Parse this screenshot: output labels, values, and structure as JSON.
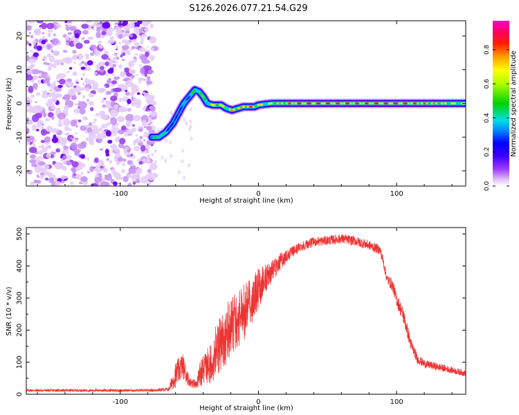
{
  "title": "S126.2026.077.21.54.G29",
  "chart_data": [
    {
      "type": "heatmap",
      "xlabel": "Height of straight line (km)",
      "ylabel": "Frequency (Hz)",
      "xlim": [
        -168,
        150
      ],
      "ylim": [
        -24.5,
        24.5
      ],
      "xticks": [
        -100,
        0,
        100
      ],
      "yticks": [
        -20,
        -10,
        0,
        10,
        20
      ],
      "noise_region_x": [
        -168,
        -77
      ],
      "colorbar": {
        "label": "Normalized spectral amplitude",
        "range": [
          0,
          0.97
        ],
        "ticks": [
          0.0,
          0.2,
          0.4,
          0.6,
          0.8
        ],
        "colormap": [
          "#ffffff",
          "#e8c8f8",
          "#b060f0",
          "#6600ff",
          "#0000ff",
          "#00a0ff",
          "#00e0e0",
          "#00d000",
          "#c0ff00",
          "#ffff00",
          "#ffa000",
          "#ff3000",
          "#ff0060",
          "#ff00c0"
        ]
      },
      "ridge": {
        "x": [
          -77,
          -72,
          -67,
          -62,
          -58,
          -54,
          -50,
          -46,
          -43,
          -40,
          -37,
          -33,
          -30,
          -27,
          -23,
          -19,
          -15,
          -11,
          -7,
          -3,
          0,
          5,
          10,
          20,
          40,
          60,
          80,
          100,
          120,
          150
        ],
        "freq": [
          -10,
          -10,
          -8.5,
          -6,
          -3,
          0,
          2,
          4,
          3.5,
          2,
          0,
          -0.5,
          -0.5,
          -0.5,
          -1.5,
          -2,
          -1.5,
          -1,
          -1,
          -1,
          -0.5,
          -0.2,
          0,
          0,
          0,
          0,
          0,
          0,
          0,
          0
        ],
        "amplitude": [
          0.35,
          0.6,
          0.4,
          0.3,
          0.3,
          0.35,
          0.45,
          0.5,
          0.6,
          0.5,
          0.55,
          0.6,
          0.75,
          0.65,
          0.6,
          0.7,
          0.75,
          0.7,
          0.8,
          0.75,
          0.7,
          0.6,
          0.65,
          0.75,
          0.85,
          0.8,
          0.8,
          0.85,
          0.75,
          0.6
        ]
      }
    },
    {
      "type": "line",
      "xlabel": "Height of straight line (km)",
      "ylabel": "SNR (10 * v/v)",
      "xlim": [
        -168,
        150
      ],
      "ylim": [
        0,
        520
      ],
      "xticks": [
        -100,
        0,
        100
      ],
      "yticks": [
        0,
        100,
        200,
        300,
        400,
        500
      ],
      "color": "#ee3333",
      "envelope": {
        "x": [
          -168,
          -80,
          -65,
          -60,
          -55,
          -52,
          -50,
          -45,
          -42,
          -35,
          -30,
          -25,
          -20,
          -10,
          -5,
          0,
          5,
          10,
          15,
          20,
          25,
          30,
          40,
          50,
          60,
          70,
          80,
          88,
          90,
          93,
          97,
          100,
          105,
          110,
          115,
          120,
          130,
          140,
          150
        ],
        "mean": [
          12,
          12,
          15,
          60,
          90,
          60,
          40,
          30,
          70,
          90,
          140,
          170,
          210,
          260,
          290,
          330,
          360,
          385,
          410,
          430,
          445,
          460,
          475,
          480,
          485,
          478,
          465,
          450,
          420,
          360,
          340,
          295,
          245,
          160,
          110,
          95,
          85,
          75,
          65
        ],
        "spread": [
          4,
          4,
          6,
          40,
          40,
          30,
          15,
          15,
          40,
          60,
          80,
          80,
          90,
          80,
          70,
          60,
          40,
          30,
          25,
          20,
          18,
          15,
          15,
          15,
          15,
          15,
          15,
          15,
          15,
          15,
          20,
          20,
          25,
          20,
          15,
          12,
          12,
          10,
          10
        ]
      }
    }
  ]
}
